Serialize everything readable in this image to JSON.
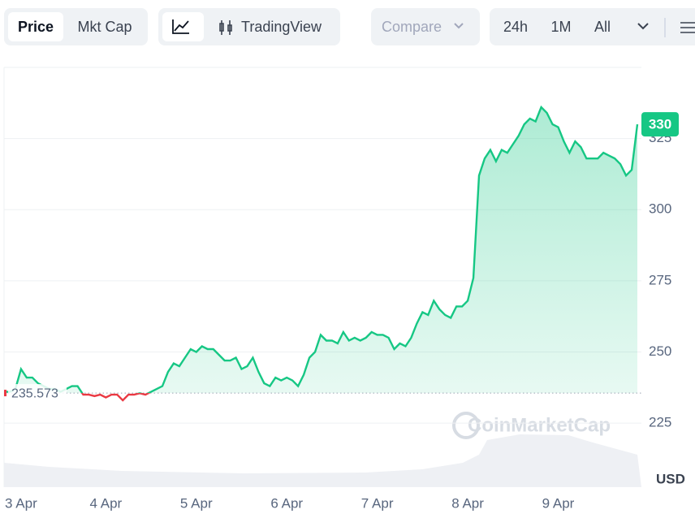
{
  "toolbar": {
    "price": "Price",
    "mkt_cap": "Mkt Cap",
    "trading_view": "TradingView",
    "compare": "Compare",
    "range_24h": "24h",
    "range_1m": "1M",
    "range_all": "All"
  },
  "chart_data": {
    "type": "line",
    "watermark": "CoinMarketCap",
    "currency": "USD",
    "baseline": 235.573,
    "above_color": "#16c784",
    "below_color": "#ea3943",
    "ylim": [
      202.5,
      350
    ],
    "yticks": [
      225,
      250,
      275,
      300,
      325
    ],
    "grid": true,
    "categories": [
      null,
      null,
      null,
      "3 Apr",
      null,
      null,
      null,
      null,
      null,
      null,
      null,
      null,
      null,
      null,
      null,
      null,
      null,
      null,
      "4 Apr",
      null,
      null,
      null,
      null,
      null,
      null,
      null,
      null,
      null,
      null,
      null,
      null,
      null,
      null,
      null,
      "5 Apr",
      null,
      null,
      null,
      null,
      null,
      null,
      null,
      null,
      null,
      null,
      null,
      null,
      null,
      null,
      null,
      "6 Apr",
      null,
      null,
      null,
      null,
      null,
      null,
      null,
      null,
      null,
      null,
      null,
      null,
      null,
      null,
      null,
      "7 Apr",
      null,
      null,
      null,
      null,
      null,
      null,
      null,
      null,
      null,
      null,
      null,
      null,
      null,
      null,
      null,
      "8 Apr",
      null,
      null,
      null,
      null,
      null,
      null,
      null,
      null,
      null,
      null,
      null,
      null,
      null,
      null,
      null,
      "9 Apr",
      null,
      null,
      null,
      null,
      null,
      null,
      null,
      null,
      null,
      null,
      null,
      null,
      null,
      null
    ],
    "values": [
      236,
      236,
      237,
      244,
      241,
      241,
      239,
      238,
      237,
      237,
      236,
      237,
      238,
      238,
      235,
      235,
      234.5,
      235,
      234,
      235,
      235,
      233,
      235,
      235,
      235.5,
      235,
      236,
      237,
      238,
      243,
      246,
      245,
      248,
      251,
      250,
      252,
      251,
      251,
      249,
      247,
      247,
      248,
      244,
      245,
      248,
      243,
      239,
      238,
      241,
      240,
      241,
      240,
      238,
      242,
      248,
      250,
      256,
      254,
      254,
      253,
      257,
      254,
      255,
      254,
      255,
      257,
      256,
      256,
      255,
      251,
      253,
      252,
      255,
      260,
      264,
      263,
      268,
      265,
      263,
      262,
      266,
      266,
      268,
      276,
      312,
      318,
      321,
      317,
      321,
      320,
      323,
      326,
      330,
      332,
      331,
      336,
      334,
      330,
      329,
      324,
      320,
      324,
      322,
      318,
      318,
      318,
      320,
      319,
      318,
      316,
      312,
      314,
      330
    ]
  }
}
